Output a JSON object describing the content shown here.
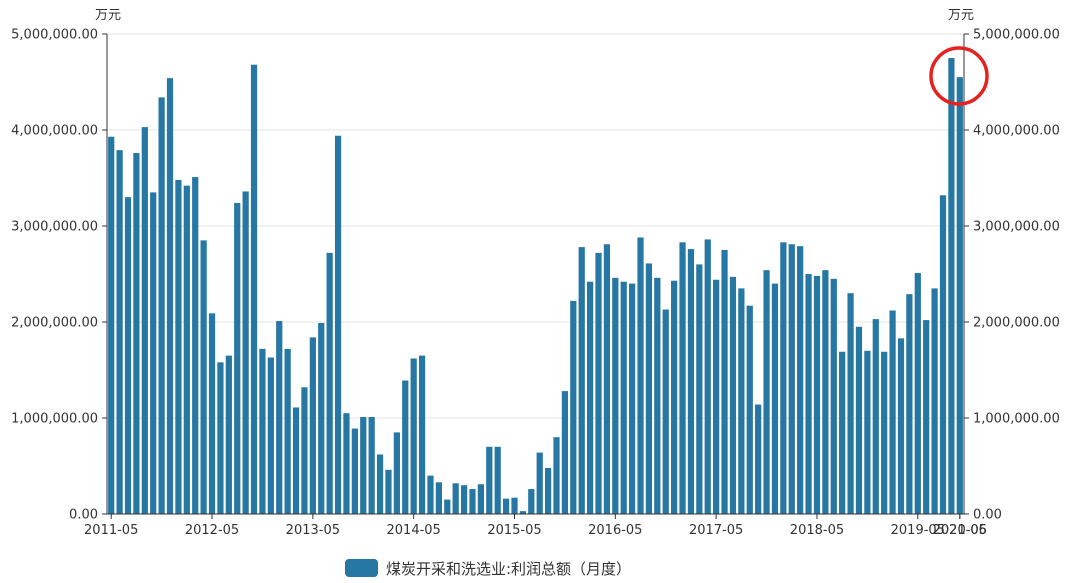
{
  "chart_data": {
    "type": "bar",
    "unit_left": "万元",
    "unit_right": "万元",
    "series": [
      {
        "name": "煤炭开采和洗选业:利润总额（月度）",
        "color": "#2677a3",
        "values": [
          3930000,
          3790000,
          3300000,
          3760000,
          4030000,
          3350000,
          4340000,
          4540000,
          3480000,
          3420000,
          3510000,
          2850000,
          2090000,
          1580000,
          1650000,
          3240000,
          3360000,
          4680000,
          1720000,
          1630000,
          2010000,
          1720000,
          1110000,
          1320000,
          1840000,
          1990000,
          2720000,
          3940000,
          1050000,
          890000,
          1010000,
          1010000,
          620000,
          460000,
          850000,
          1390000,
          1620000,
          1650000,
          400000,
          330000,
          150000,
          320000,
          300000,
          260000,
          310000,
          700000,
          700000,
          160000,
          170000,
          30000,
          260000,
          640000,
          480000,
          800000,
          1280000,
          2220000,
          2780000,
          2420000,
          2720000,
          2810000,
          2460000,
          2420000,
          2400000,
          2880000,
          2610000,
          2460000,
          2130000,
          2430000,
          2830000,
          2760000,
          2600000,
          2860000,
          2440000,
          2750000,
          2470000,
          2350000,
          2170000,
          1140000,
          2540000,
          2400000,
          2830000,
          2810000,
          2790000,
          2500000,
          2480000,
          2540000,
          2450000,
          1690000,
          2300000,
          1950000,
          1700000,
          2030000,
          1690000,
          2120000,
          1830000,
          2290000,
          2510000,
          2020000,
          2350000,
          3320000,
          4750000,
          4550000
        ]
      }
    ],
    "x_tick_labels": [
      "2011-05",
      "2012-05",
      "2013-05",
      "2014-05",
      "2015-05",
      "2016-05",
      "2017-05",
      "2018-05",
      "2019-05",
      "2020-05",
      "2021-06"
    ],
    "y_tick_labels": [
      "0.00",
      "1,000,000.00",
      "2,000,000.00",
      "3,000,000.00",
      "4,000,000.00",
      "5,000,000.00"
    ],
    "ylim": [
      0,
      5000000
    ],
    "grid": true,
    "legend_position": "bottom-center",
    "annotation": {
      "type": "circle",
      "color": "#e52220",
      "target": "2021 peak"
    }
  }
}
